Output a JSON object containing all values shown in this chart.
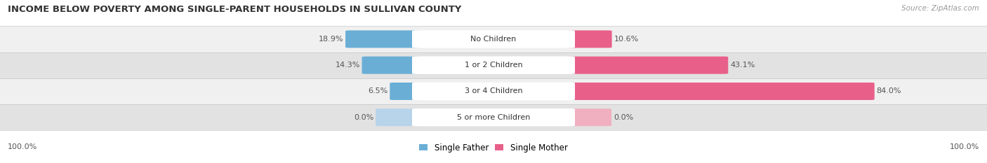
{
  "title": "INCOME BELOW POVERTY AMONG SINGLE-PARENT HOUSEHOLDS IN SULLIVAN COUNTY",
  "source": "Source: ZipAtlas.com",
  "categories": [
    "No Children",
    "1 or 2 Children",
    "3 or 4 Children",
    "5 or more Children"
  ],
  "father_values": [
    18.9,
    14.3,
    6.5,
    0.0
  ],
  "mother_values": [
    10.6,
    43.1,
    84.0,
    0.0
  ],
  "father_color": "#6aaed6",
  "mother_color": "#e8608a",
  "father_color_light": "#b8d4ea",
  "mother_color_light": "#f0b0c0",
  "row_bg_odd": "#f0f0f0",
  "row_bg_even": "#e2e2e2",
  "row_border_color": "#cccccc",
  "title_fontsize": 9.5,
  "source_fontsize": 7.5,
  "label_fontsize": 8,
  "value_fontsize": 8,
  "legend_fontsize": 8.5,
  "axis_label_left": "100.0%",
  "axis_label_right": "100.0%",
  "max_value": 100.0,
  "figsize": [
    14.06,
    2.33
  ],
  "dpi": 100
}
